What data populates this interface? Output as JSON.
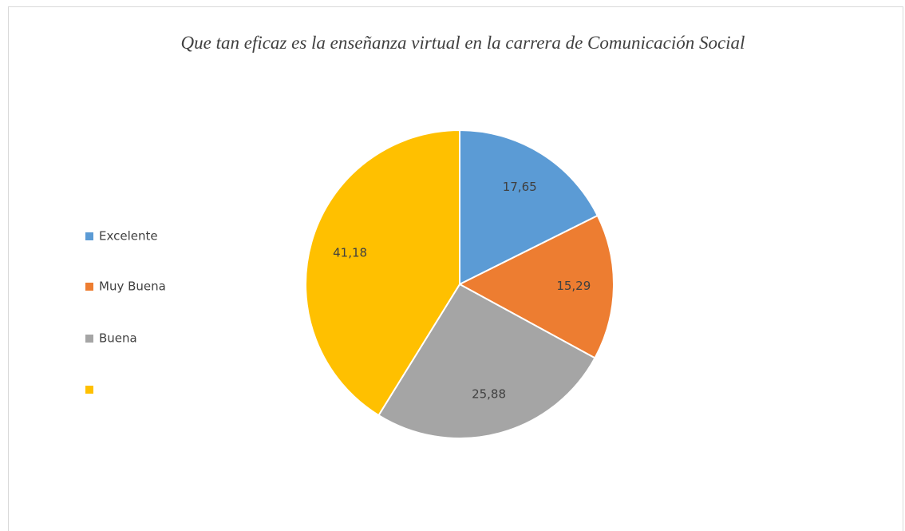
{
  "chart_data": {
    "type": "pie",
    "title": "Que tan eficaz es la enseñanza virtual en la carrera de Comunicación Social",
    "categories": [
      "Excelente",
      "Muy Buena",
      "Buena",
      null
    ],
    "values": [
      17.65,
      15.29,
      25.88,
      41.18
    ],
    "value_labels": [
      "17,65",
      "15,29",
      "25,88",
      "41,18"
    ],
    "colors": [
      "#5b9bd5",
      "#ed7d31",
      "#a5a5a5",
      "#ffc000"
    ],
    "legend": "left"
  }
}
